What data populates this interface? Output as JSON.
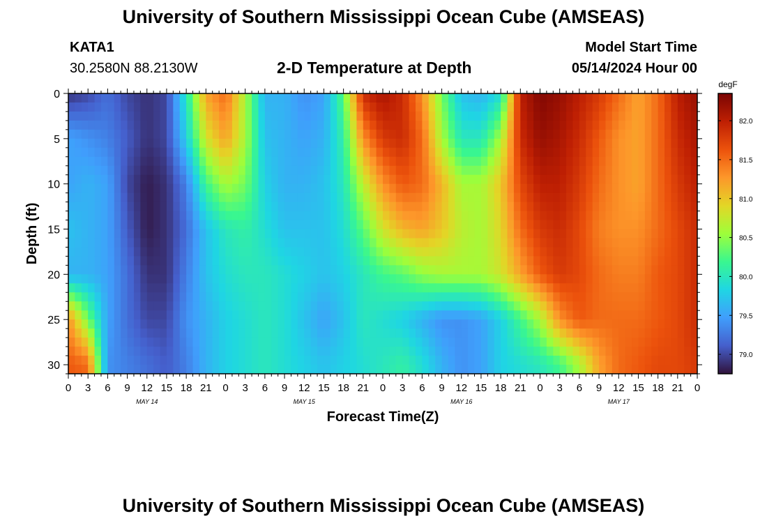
{
  "header": {
    "title": "University of Southern Mississippi Ocean Cube (AMSEAS)",
    "station_id": "KATA1",
    "station_coords": "30.2580N  88.2130W",
    "plot_title": "2-D Temperature at Depth",
    "model_start_label": "Model Start Time",
    "model_start_value": "05/14/2024 Hour 00"
  },
  "footer": {
    "title": "University of Southern Mississippi Ocean Cube (AMSEAS)"
  },
  "chart_data": {
    "type": "heatmap",
    "title": "2-D Temperature at Depth",
    "xlabel": "Forecast Time(Z)",
    "ylabel": "Depth (ft)",
    "x_unit": "hours since 05/14/2024 00Z",
    "x_range": [
      0,
      96
    ],
    "x_tick_values": [
      0,
      3,
      6,
      9,
      12,
      15,
      18,
      21,
      24,
      27,
      30,
      33,
      36,
      39,
      42,
      45,
      48,
      51,
      54,
      57,
      60,
      63,
      66,
      69,
      72,
      75,
      78,
      81,
      84,
      87,
      90,
      93,
      96
    ],
    "x_tick_labels": [
      "0",
      "3",
      "6",
      "9",
      "12",
      "15",
      "18",
      "21",
      "0",
      "3",
      "6",
      "9",
      "12",
      "15",
      "18",
      "21",
      "0",
      "3",
      "6",
      "9",
      "12",
      "15",
      "18",
      "21",
      "0",
      "3",
      "6",
      "9",
      "12",
      "15",
      "18",
      "21",
      "0"
    ],
    "date_labels": [
      {
        "x": 12,
        "text": "MAY 14"
      },
      {
        "x": 36,
        "text": "MAY 15"
      },
      {
        "x": 60,
        "text": "MAY 16"
      },
      {
        "x": 84,
        "text": "MAY 17"
      }
    ],
    "y_range": [
      0,
      31
    ],
    "y_inverted": true,
    "y_ticks": [
      0,
      5,
      10,
      15,
      20,
      25,
      30
    ],
    "colorbar": {
      "unit": "degF",
      "range": [
        78.75,
        82.35
      ],
      "ticks": [
        79.0,
        79.5,
        80.0,
        80.5,
        81.0,
        81.5,
        82.0
      ],
      "tick_labels": [
        "79.0",
        "79.5",
        "80.0",
        "80.5",
        "81.0",
        "81.5",
        "82.0"
      ],
      "colormap": "turbo"
    },
    "depths_ft": [
      0,
      5,
      10,
      15,
      20,
      25,
      30
    ],
    "times_hr": [
      0,
      3,
      6,
      9,
      12,
      15,
      18,
      21,
      24,
      27,
      30,
      33,
      36,
      39,
      42,
      45,
      48,
      51,
      54,
      57,
      60,
      63,
      66,
      69,
      72,
      75,
      78,
      81,
      84,
      87,
      90,
      93,
      96
    ],
    "values": [
      [
        78.9,
        79.0,
        79.2,
        79.0,
        78.9,
        79.0,
        80.0,
        81.2,
        81.5,
        80.6,
        79.6,
        79.6,
        79.4,
        79.5,
        80.3,
        81.9,
        82.1,
        81.9,
        81.3,
        80.4,
        79.7,
        79.6,
        79.9,
        82.0,
        82.3,
        82.2,
        82.0,
        81.8,
        81.5,
        81.2,
        81.5,
        82.0,
        82.2
      ],
      [
        79.5,
        79.4,
        79.3,
        79.1,
        78.9,
        79.0,
        79.8,
        80.8,
        81.2,
        80.6,
        79.7,
        79.6,
        79.5,
        79.6,
        80.1,
        81.3,
        81.8,
        81.9,
        81.5,
        80.6,
        80.0,
        80.0,
        80.6,
        81.9,
        82.2,
        82.1,
        81.9,
        81.6,
        81.3,
        81.2,
        81.5,
        81.9,
        82.1
      ],
      [
        79.5,
        79.6,
        79.5,
        79.0,
        78.8,
        78.9,
        79.3,
        80.2,
        80.6,
        80.4,
        79.8,
        79.6,
        79.6,
        79.7,
        80.0,
        80.7,
        81.3,
        81.6,
        81.5,
        81.1,
        80.6,
        80.6,
        81.0,
        81.7,
        82.0,
        82.0,
        81.8,
        81.5,
        81.3,
        81.2,
        81.5,
        81.8,
        82.0
      ],
      [
        79.7,
        79.6,
        79.5,
        79.1,
        78.8,
        78.9,
        79.2,
        79.7,
        80.0,
        80.1,
        79.9,
        79.7,
        79.7,
        79.7,
        79.9,
        80.3,
        80.8,
        81.1,
        81.2,
        81.0,
        80.7,
        80.6,
        80.9,
        81.5,
        81.8,
        81.9,
        81.7,
        81.4,
        81.3,
        81.3,
        81.5,
        81.7,
        81.9
      ],
      [
        79.6,
        79.6,
        79.5,
        79.2,
        78.9,
        78.9,
        79.3,
        79.7,
        79.9,
        80.0,
        80.0,
        79.9,
        79.8,
        79.7,
        79.8,
        80.0,
        80.2,
        80.3,
        80.5,
        80.6,
        80.6,
        80.6,
        80.8,
        81.2,
        81.6,
        81.8,
        81.7,
        81.5,
        81.4,
        81.4,
        81.6,
        81.7,
        81.9
      ],
      [
        81.3,
        80.4,
        79.5,
        79.2,
        79.0,
        79.0,
        79.4,
        79.6,
        79.8,
        79.9,
        80.0,
        79.9,
        79.7,
        79.5,
        79.7,
        80.0,
        79.9,
        79.8,
        79.6,
        79.4,
        79.4,
        79.5,
        79.8,
        80.2,
        80.6,
        81.3,
        81.6,
        81.5,
        81.5,
        81.5,
        81.6,
        81.7,
        81.9
      ],
      [
        81.6,
        81.5,
        79.4,
        79.3,
        79.2,
        79.1,
        79.3,
        79.6,
        79.8,
        79.9,
        80.0,
        79.9,
        79.8,
        79.7,
        79.8,
        79.9,
        80.0,
        80.1,
        79.9,
        79.6,
        79.4,
        79.5,
        79.8,
        79.9,
        80.0,
        80.2,
        80.6,
        81.2,
        81.5,
        81.6,
        81.7,
        81.7,
        81.8
      ]
    ]
  }
}
